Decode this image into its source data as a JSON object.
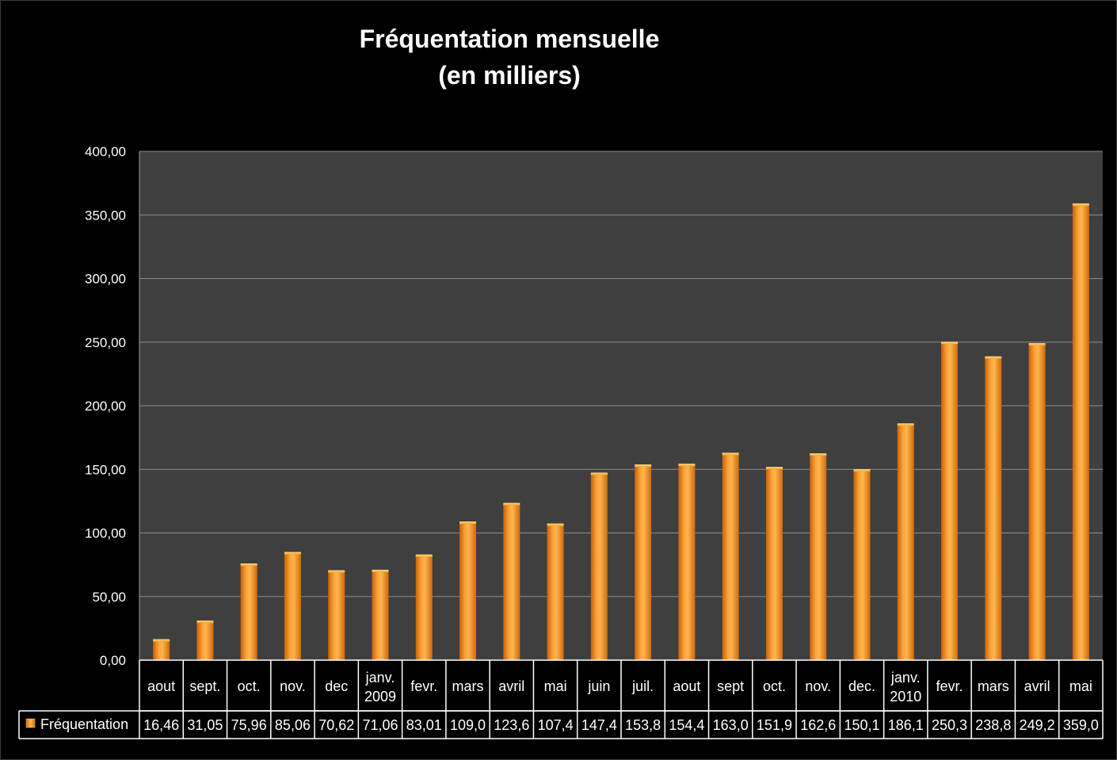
{
  "chart_data": {
    "type": "bar",
    "title_line1": "Fréquentation mensuelle",
    "title_line2": "(en milliers)",
    "categories": [
      [
        "aout"
      ],
      [
        "sept."
      ],
      [
        "oct."
      ],
      [
        "nov."
      ],
      [
        "dec"
      ],
      [
        "janv.",
        "2009"
      ],
      [
        "fevr."
      ],
      [
        "mars"
      ],
      [
        "avril"
      ],
      [
        "mai"
      ],
      [
        "juin"
      ],
      [
        "juil."
      ],
      [
        "aout"
      ],
      [
        "sept"
      ],
      [
        "oct."
      ],
      [
        "nov."
      ],
      [
        "dec."
      ],
      [
        "janv.",
        "2010"
      ],
      [
        "fevr."
      ],
      [
        "mars"
      ],
      [
        "avril"
      ],
      [
        "mai"
      ]
    ],
    "series": [
      {
        "name": "Fréquentation",
        "values": [
          16.46,
          31.05,
          75.96,
          85.06,
          70.62,
          71.06,
          83.01,
          109.0,
          123.6,
          107.4,
          147.4,
          153.8,
          154.4,
          163.0,
          151.9,
          162.6,
          150.1,
          186.1,
          250.3,
          238.8,
          249.2,
          359.0
        ],
        "labels": [
          "16,46",
          "31,05",
          "75,96",
          "85,06",
          "70,62",
          "71,06",
          "83,01",
          "109,0",
          "123,6",
          "107,4",
          "147,4",
          "153,8",
          "154,4",
          "163,0",
          "151,9",
          "162,6",
          "150,1",
          "186,1",
          "250,3",
          "238,8",
          "249,2",
          "359,0"
        ]
      }
    ],
    "ylim": [
      0,
      400
    ],
    "yticks": [
      0,
      50,
      100,
      150,
      200,
      250,
      300,
      350,
      400
    ],
    "ytick_labels": [
      "0,00",
      "50,00",
      "100,00",
      "150,00",
      "200,00",
      "250,00",
      "300,00",
      "350,00",
      "400,00"
    ],
    "grid": true,
    "data_table": true,
    "colors": {
      "background": "#000000",
      "plot_area": "#3f3f3f",
      "bar_light": "#ffb14a",
      "bar_dark": "#d9720f",
      "grid": "#8c8c8c",
      "table_border": "#ffffff"
    }
  }
}
